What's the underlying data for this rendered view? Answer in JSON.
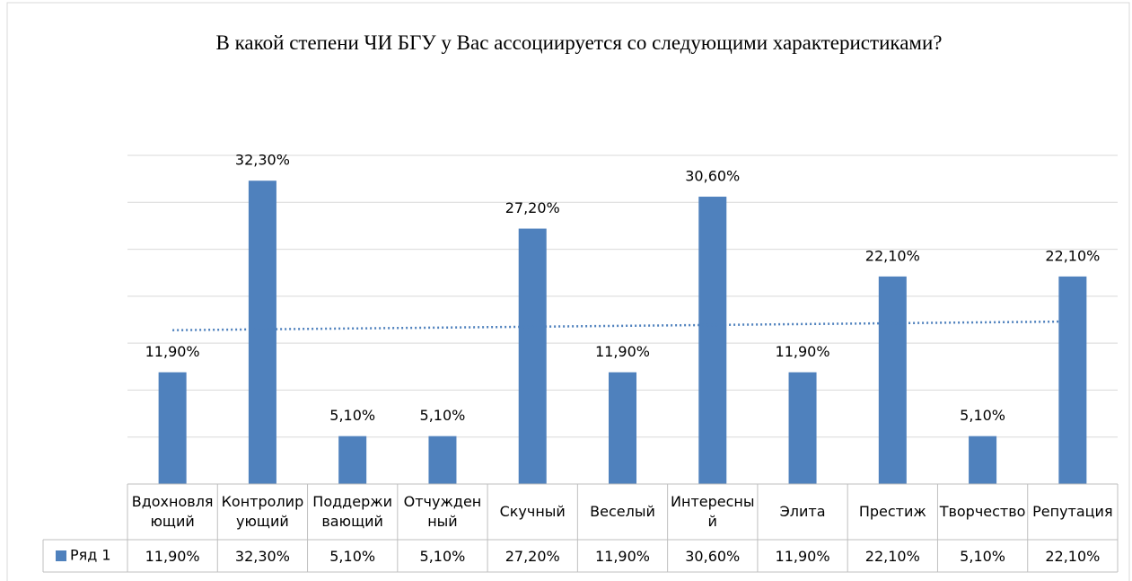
{
  "chart_data": {
    "type": "bar",
    "title": "В какой степени ЧИ БГУ у Вас ассоциируется со следующими характеристиками?",
    "categories": [
      "Вдохновляющий",
      "Контролирующий",
      "Поддерживающий",
      "Отчужденный",
      "Скучный",
      "Веселый",
      "Интересный",
      "Элита",
      "Престиж",
      "Творчество",
      "Репутация"
    ],
    "series": [
      {
        "name": "Ряд 1",
        "color": "#4f81bd",
        "values": [
          11.9,
          32.3,
          5.1,
          5.1,
          27.2,
          11.9,
          30.6,
          11.9,
          22.1,
          5.1,
          22.1
        ],
        "value_labels": [
          "11,90%",
          "32,30%",
          "5,10%",
          "5,10%",
          "27,20%",
          "11,90%",
          "30,60%",
          "11,90%",
          "22,10%",
          "5,10%",
          "22,10%"
        ]
      }
    ],
    "ylim": [
      0,
      35
    ],
    "yticks": [
      0,
      5,
      10,
      15,
      20,
      25,
      30,
      35
    ],
    "grid": true,
    "trendline": "linear",
    "data_table": true
  }
}
